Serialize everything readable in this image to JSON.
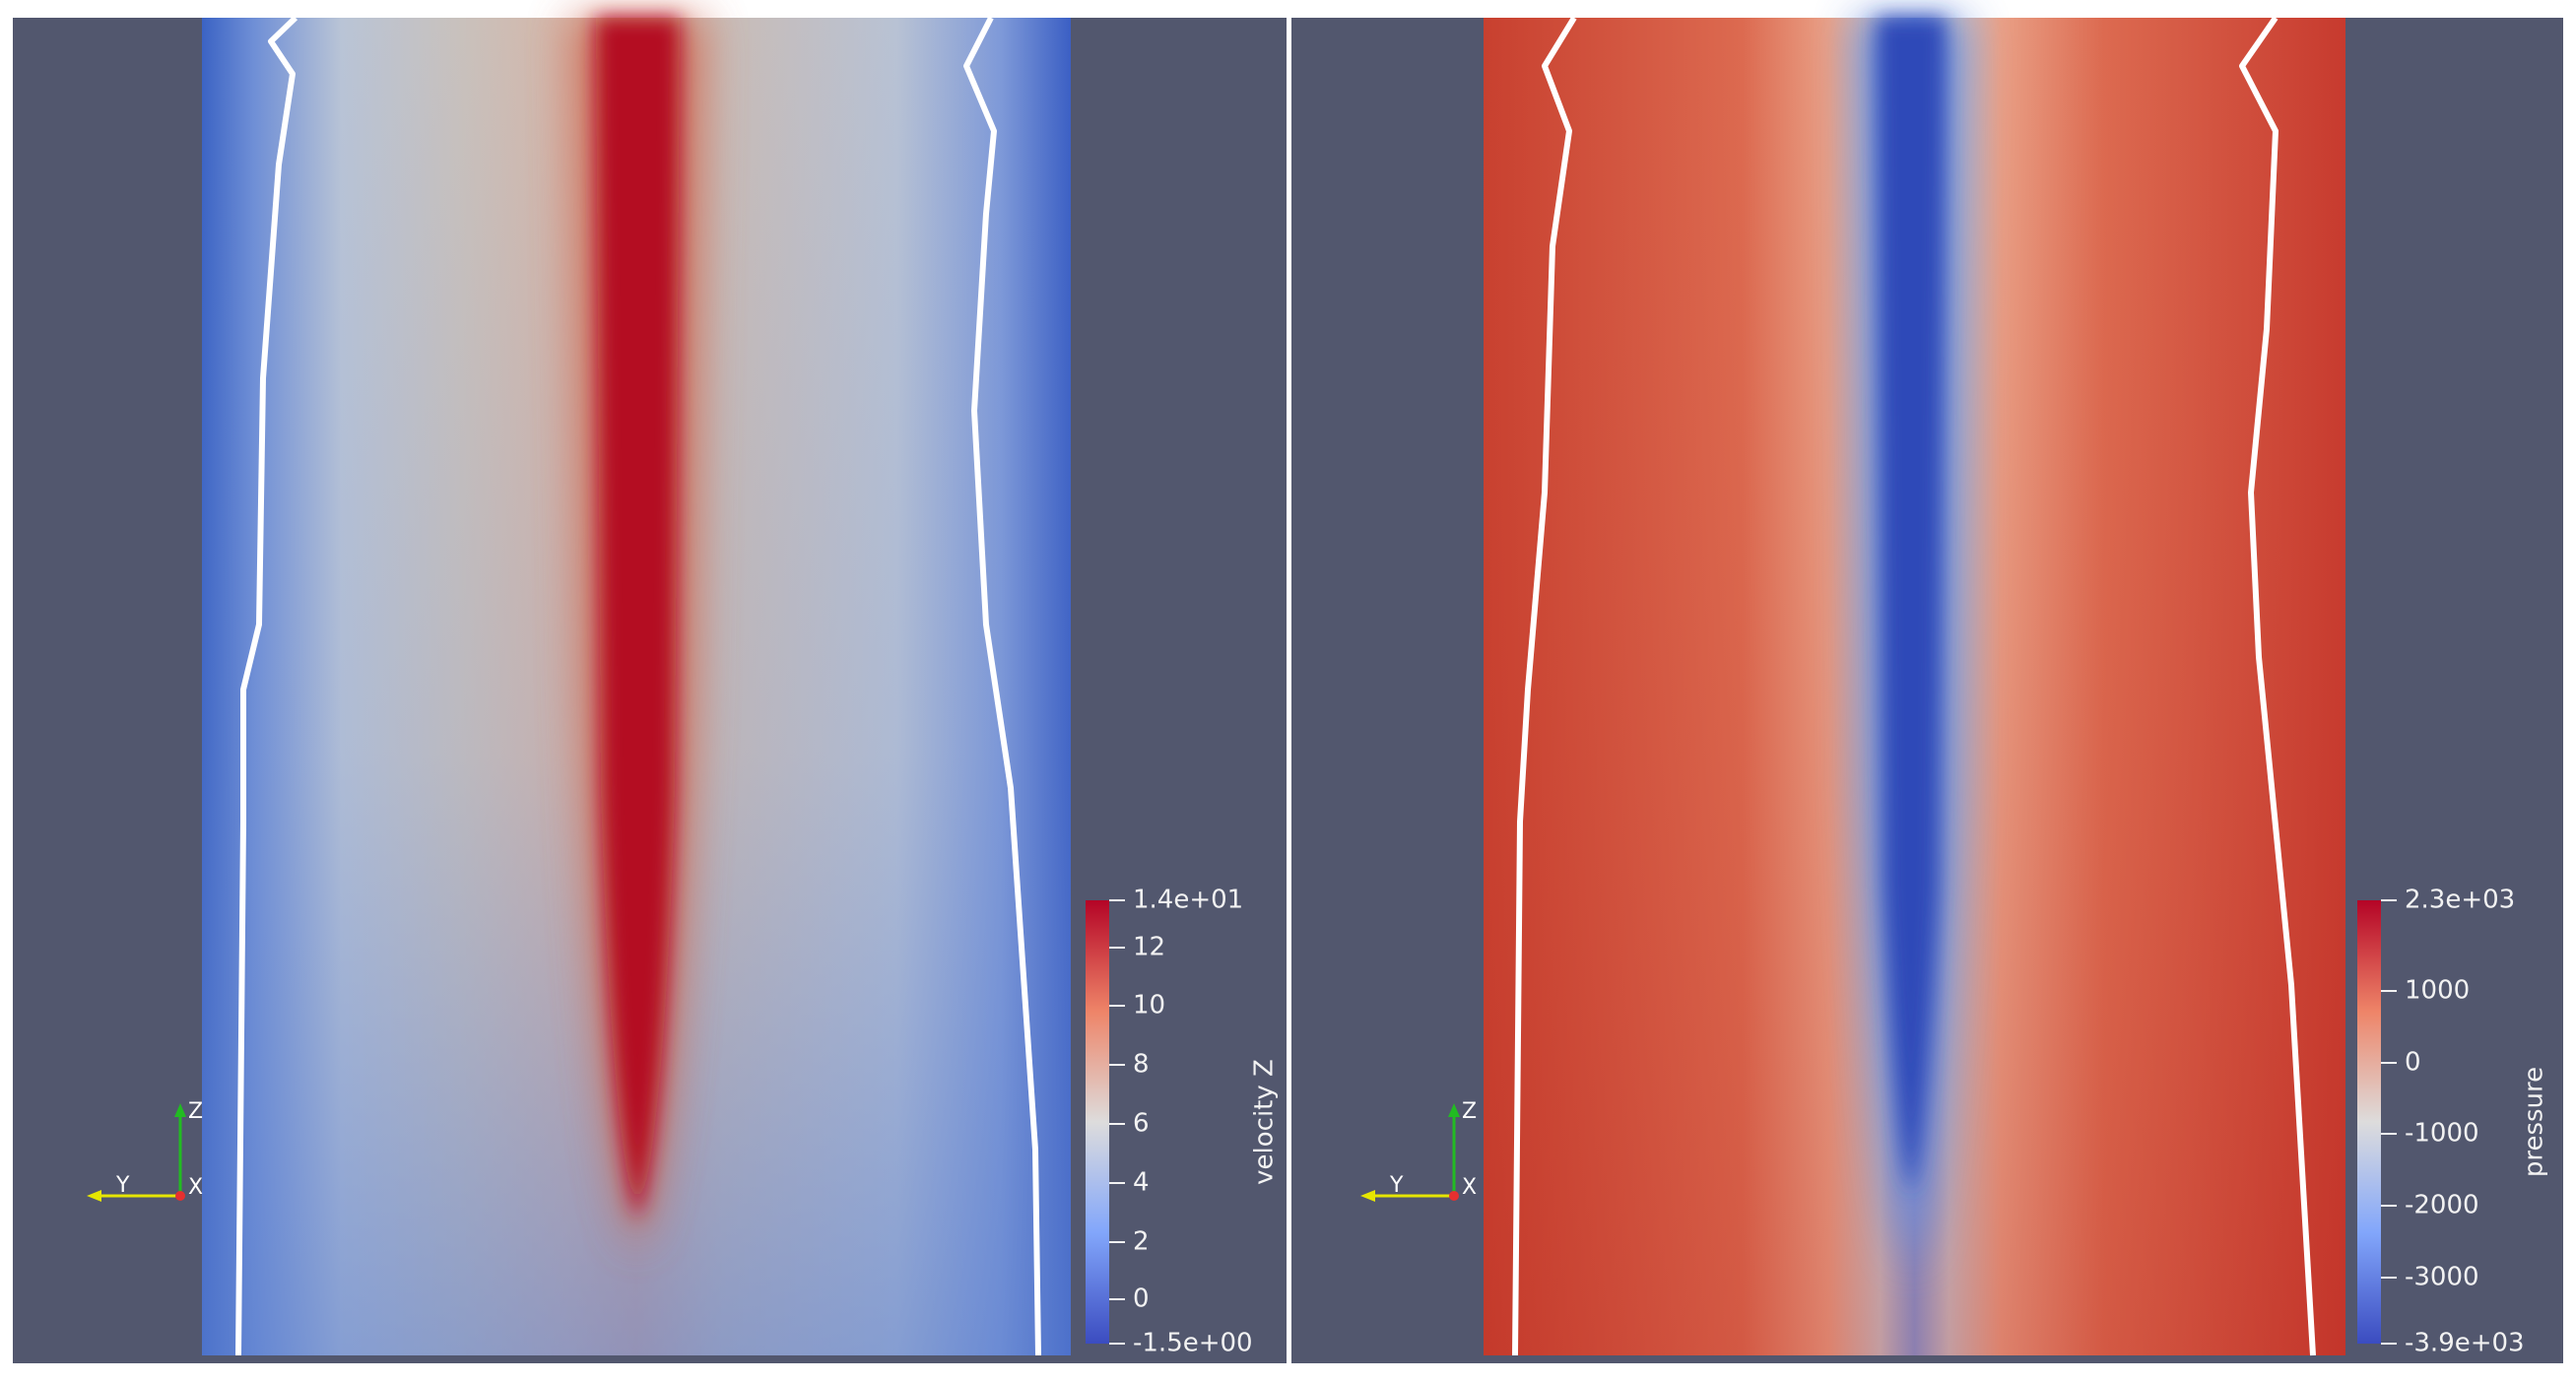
{
  "views": [
    {
      "colorbar": {
        "title": "velocity Z",
        "labels": [
          "1.4e+01",
          "12",
          "10",
          "8",
          "6",
          "4",
          "2",
          "0",
          "-1.5e+00"
        ]
      },
      "triad": {
        "x": "X",
        "y": "Y",
        "z": "Z"
      }
    },
    {
      "colorbar": {
        "title": "pressure",
        "labels": [
          "2.3e+03",
          "1000",
          "0",
          "-1000",
          "-2000",
          "-3000",
          "-3.9e+03"
        ]
      },
      "triad": {
        "x": "X",
        "y": "Y",
        "z": "Z"
      }
    }
  ]
}
